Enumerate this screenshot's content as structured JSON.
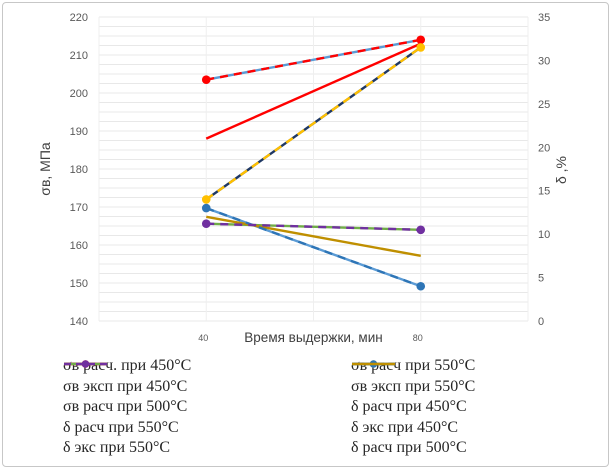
{
  "figure": {
    "background": "#ffffff",
    "border_color": "#c7c7c7",
    "gridline_color": "#e8e8e8",
    "vertical_gridline_color": "#efefef",
    "tick_color": "#595959",
    "axis_title_color": "#404040"
  },
  "chart_data": {
    "type": "line",
    "title": "",
    "x_axis": {
      "title": "Время выдержки, мин",
      "ticks": [
        40,
        80
      ],
      "range": [
        20,
        100
      ],
      "gridline_step": 20
    },
    "left_axis": {
      "title": "σв, МПа",
      "min": 140,
      "max": 220,
      "tick_step": 10,
      "minor_step": 2.5,
      "ticks": [
        140,
        150,
        160,
        170,
        180,
        190,
        200,
        210,
        220
      ]
    },
    "right_axis": {
      "title": "δ ,%",
      "min": 0,
      "max": 35,
      "tick_step": 5,
      "ticks": [
        0,
        5,
        10,
        15,
        20,
        25,
        30,
        35
      ]
    },
    "x": [
      40,
      80
    ],
    "series": [
      {
        "name": "σв расч. при 450°С",
        "axis": "left",
        "color": "#5B9BD5",
        "dash": false,
        "marker": false,
        "values": [
          203.5,
          214
        ]
      },
      {
        "name": "σв расч при 500°С",
        "axis": "left",
        "color": "#FF0000",
        "dash": false,
        "marker": false,
        "values": [
          188,
          213
        ]
      },
      {
        "name": "σв расч при 550°С",
        "axis": "left",
        "color": "#1F3864",
        "dash": false,
        "marker": false,
        "values": [
          172,
          212
        ]
      },
      {
        "name": "δ расч при 450°С",
        "axis": "right",
        "color": "#5B9BD5",
        "dash": false,
        "marker": false,
        "values": [
          13,
          4
        ]
      },
      {
        "name": "δ расч при 550°С",
        "axis": "right",
        "color": "#70AD47",
        "dash": false,
        "marker": false,
        "values": [
          11.2,
          10.5
        ]
      },
      {
        "name": "δ расч при 500°С",
        "axis": "right",
        "color": "#BF8F00",
        "dash": false,
        "marker": false,
        "values": [
          12,
          7.5
        ]
      },
      {
        "name": "σв  эксп при 450°С",
        "axis": "left",
        "color": "#FF0000",
        "dash": true,
        "marker": true,
        "values": [
          203.5,
          214
        ]
      },
      {
        "name": "σв  эксп при 550°С",
        "axis": "left",
        "color": "#FFC000",
        "dash": true,
        "marker": true,
        "values": [
          172,
          212
        ]
      },
      {
        "name": "δ экс при 450°С",
        "axis": "right",
        "color": "#2E75B6",
        "dash": true,
        "marker": true,
        "values": [
          13,
          4
        ]
      },
      {
        "name": "δ экс при 550°С",
        "axis": "right",
        "color": "#7030A0",
        "dash": true,
        "marker": true,
        "values": [
          11.2,
          10.5
        ]
      }
    ],
    "legend": {
      "position": "bottom",
      "columns": [
        [
          "σв расч. при 450°С",
          "σв  эксп при 450°С",
          "σв расч при 500°С",
          "δ расч при 550°С",
          "δ экс при 550°С"
        ],
        [
          "σв расч при 550°С",
          "σв  эксп при 550°С",
          "δ расч при 450°С",
          "δ экс при 450°С",
          "δ расч при 500°С"
        ]
      ]
    }
  }
}
